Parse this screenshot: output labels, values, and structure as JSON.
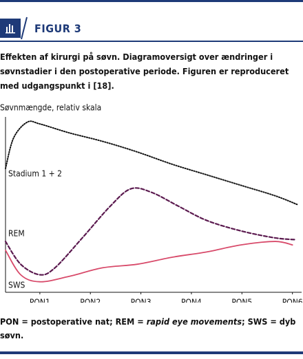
{
  "header": {
    "label": "FIGUR 3"
  },
  "caption": "Effekten af kirurgi på søvn. Diagramoversigt over ændringer i søvnstadier i den postoperative periode. Figuren er reproduceret med udgangspunkt i [18].",
  "chart_data": {
    "type": "line",
    "ylabel": "Søvnmængde, relativ skala",
    "xlim": [
      0.32,
      6.1
    ],
    "ylim": [
      0,
      100
    ],
    "xticks": [
      {
        "value": 1,
        "label": "PON1"
      },
      {
        "value": 2,
        "label": "PON2"
      },
      {
        "value": 3,
        "label": "PON3"
      },
      {
        "value": 4,
        "label": "PON4"
      },
      {
        "value": 5,
        "label": "PON5"
      },
      {
        "value": 6,
        "label": "PON6"
      }
    ],
    "series": [
      {
        "name": "Stadium 1 + 2",
        "color": "#111111",
        "style": "dotted",
        "x": [
          0.32,
          0.48,
          0.75,
          1,
          1.57,
          2.25,
          2.93,
          3.62,
          4.3,
          4.98,
          5.66,
          6.1
        ],
        "values": [
          70.6,
          88,
          97,
          96,
          91,
          86,
          80,
          73,
          67,
          61,
          55,
          50
        ]
      },
      {
        "name": "REM",
        "color": "#5b1a4f",
        "style": "dashed",
        "x": [
          0.32,
          0.62,
          1,
          1.3,
          1.84,
          2.39,
          2.8,
          3.21,
          3.75,
          4.3,
          4.98,
          5.66,
          6.07
        ],
        "values": [
          29,
          16,
          10,
          14,
          31,
          49,
          59,
          57,
          49,
          41,
          35,
          31,
          30
        ]
      },
      {
        "name": "SWS",
        "color": "#d84a6a",
        "style": "solid",
        "x": [
          0.32,
          0.62,
          1,
          1.57,
          2.25,
          2.93,
          3.62,
          4.3,
          4.98,
          5.66,
          6.0
        ],
        "values": [
          24,
          10,
          6,
          9,
          14,
          16,
          20,
          23,
          27,
          29,
          27
        ]
      }
    ]
  },
  "notes": {
    "before": "PON = postoperative nat; REM = ",
    "italic": "rapid eye movements",
    "after": "; SWS = dyb søvn."
  }
}
